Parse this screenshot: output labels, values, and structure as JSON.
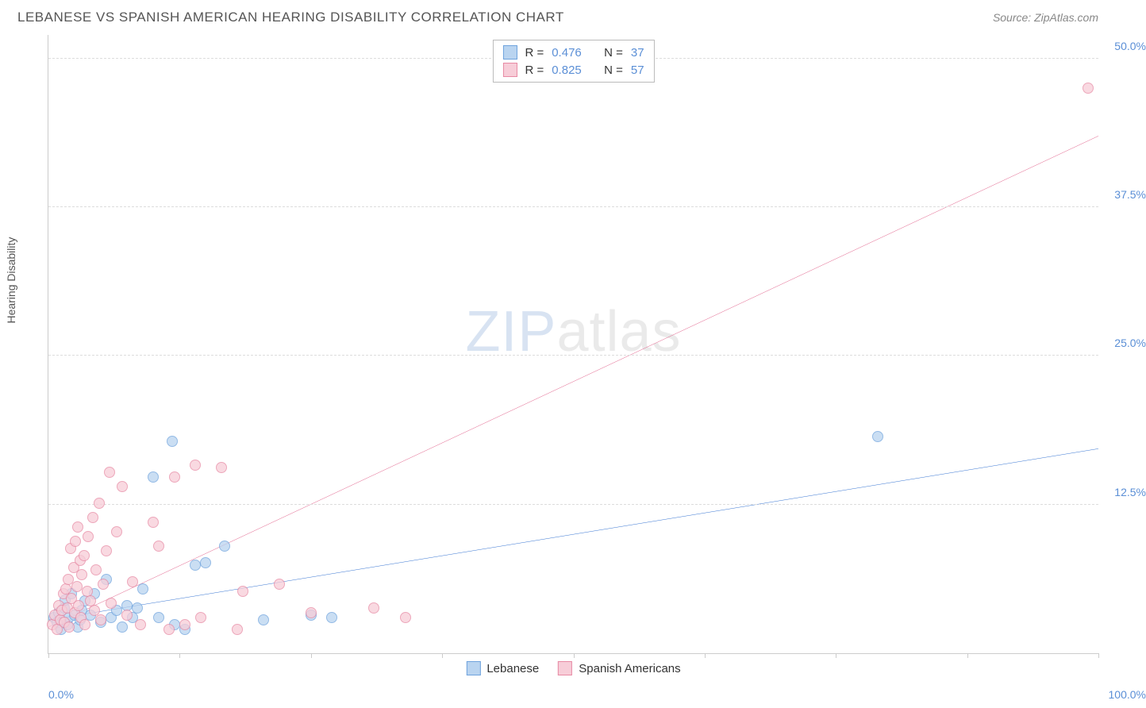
{
  "header": {
    "title": "LEBANESE VS SPANISH AMERICAN HEARING DISABILITY CORRELATION CHART",
    "source": "Source: ZipAtlas.com"
  },
  "watermark": {
    "part1": "ZIP",
    "part2": "atlas"
  },
  "chart": {
    "type": "scatter",
    "ylabel": "Hearing Disability",
    "xlim": [
      0,
      100
    ],
    "ylim": [
      0,
      52
    ],
    "background_color": "#ffffff",
    "grid_color": "#dddddd",
    "axis_color": "#cccccc",
    "tick_label_color": "#5b8fd6",
    "yticks": [
      {
        "v": 12.5,
        "label": "12.5%"
      },
      {
        "v": 25.0,
        "label": "25.0%"
      },
      {
        "v": 37.5,
        "label": "37.5%"
      },
      {
        "v": 50.0,
        "label": "50.0%"
      }
    ],
    "xticks_minor_pct": [
      0,
      12.5,
      25,
      37.5,
      50,
      62.5,
      75,
      87.5,
      100
    ],
    "xtick_labels": {
      "min": "0.0%",
      "max": "100.0%"
    },
    "series": [
      {
        "name": "Lebanese",
        "marker_fill": "#b9d4f0",
        "marker_stroke": "#6fa3dd",
        "marker_opacity": 0.75,
        "marker_radius": 7,
        "line_color": "#2f6fd0",
        "line_width": 2,
        "r_value": "0.476",
        "n_value": "37",
        "trend": {
          "x1": 0,
          "y1": 2.8,
          "x2": 100,
          "y2": 17.2
        },
        "points": [
          [
            0.5,
            3.0
          ],
          [
            0.8,
            2.6
          ],
          [
            1.0,
            3.4
          ],
          [
            1.2,
            2.0
          ],
          [
            1.5,
            3.8
          ],
          [
            1.6,
            4.5
          ],
          [
            1.8,
            2.4
          ],
          [
            2.0,
            3.0
          ],
          [
            2.2,
            5.0
          ],
          [
            2.5,
            3.2
          ],
          [
            2.8,
            2.2
          ],
          [
            3.0,
            2.8
          ],
          [
            3.2,
            3.6
          ],
          [
            3.5,
            4.4
          ],
          [
            4.0,
            3.2
          ],
          [
            4.4,
            5.0
          ],
          [
            5.0,
            2.6
          ],
          [
            5.5,
            6.2
          ],
          [
            6.0,
            3.0
          ],
          [
            6.5,
            3.6
          ],
          [
            7.0,
            2.2
          ],
          [
            7.5,
            4.0
          ],
          [
            8.0,
            3.0
          ],
          [
            8.5,
            3.8
          ],
          [
            9.0,
            5.4
          ],
          [
            10.0,
            14.8
          ],
          [
            10.5,
            3.0
          ],
          [
            11.8,
            17.8
          ],
          [
            12.0,
            2.4
          ],
          [
            13.0,
            2.0
          ],
          [
            14.0,
            7.4
          ],
          [
            15.0,
            7.6
          ],
          [
            16.8,
            9.0
          ],
          [
            20.5,
            2.8
          ],
          [
            25.0,
            3.2
          ],
          [
            27.0,
            3.0
          ],
          [
            79.0,
            18.2
          ]
        ]
      },
      {
        "name": "Spanish Americans",
        "marker_fill": "#f7cdd8",
        "marker_stroke": "#e78aa4",
        "marker_opacity": 0.75,
        "marker_radius": 7,
        "line_color": "#e05a86",
        "line_width": 2,
        "r_value": "0.825",
        "n_value": "57",
        "trend": {
          "x1": 0,
          "y1": 2.2,
          "x2": 100,
          "y2": 43.5
        },
        "points": [
          [
            0.4,
            2.4
          ],
          [
            0.6,
            3.2
          ],
          [
            0.8,
            2.0
          ],
          [
            1.0,
            4.0
          ],
          [
            1.1,
            2.8
          ],
          [
            1.3,
            3.6
          ],
          [
            1.4,
            5.0
          ],
          [
            1.5,
            2.6
          ],
          [
            1.7,
            5.4
          ],
          [
            1.8,
            3.8
          ],
          [
            1.9,
            6.2
          ],
          [
            2.0,
            2.2
          ],
          [
            2.1,
            8.8
          ],
          [
            2.2,
            4.6
          ],
          [
            2.4,
            7.2
          ],
          [
            2.5,
            3.4
          ],
          [
            2.6,
            9.4
          ],
          [
            2.7,
            5.6
          ],
          [
            2.8,
            10.6
          ],
          [
            2.9,
            4.0
          ],
          [
            3.0,
            7.8
          ],
          [
            3.1,
            3.0
          ],
          [
            3.2,
            6.6
          ],
          [
            3.4,
            8.2
          ],
          [
            3.5,
            2.4
          ],
          [
            3.7,
            5.2
          ],
          [
            3.8,
            9.8
          ],
          [
            4.0,
            4.4
          ],
          [
            4.2,
            11.4
          ],
          [
            4.4,
            3.6
          ],
          [
            4.5,
            7.0
          ],
          [
            4.8,
            12.6
          ],
          [
            5.0,
            2.8
          ],
          [
            5.2,
            5.8
          ],
          [
            5.5,
            8.6
          ],
          [
            5.8,
            15.2
          ],
          [
            6.0,
            4.2
          ],
          [
            6.5,
            10.2
          ],
          [
            7.0,
            14.0
          ],
          [
            7.5,
            3.2
          ],
          [
            8.0,
            6.0
          ],
          [
            8.8,
            2.4
          ],
          [
            10.0,
            11.0
          ],
          [
            10.5,
            9.0
          ],
          [
            11.5,
            2.0
          ],
          [
            12.0,
            14.8
          ],
          [
            13.0,
            2.4
          ],
          [
            14.0,
            15.8
          ],
          [
            14.5,
            3.0
          ],
          [
            16.5,
            15.6
          ],
          [
            18.0,
            2.0
          ],
          [
            18.5,
            5.2
          ],
          [
            22.0,
            5.8
          ],
          [
            25.0,
            3.4
          ],
          [
            31.0,
            3.8
          ],
          [
            34.0,
            3.0
          ],
          [
            99.0,
            47.5
          ]
        ]
      }
    ],
    "legend_top": {
      "r_label": "R =",
      "n_label": "N ="
    },
    "legend_bottom": {
      "items": [
        "Lebanese",
        "Spanish Americans"
      ]
    }
  }
}
